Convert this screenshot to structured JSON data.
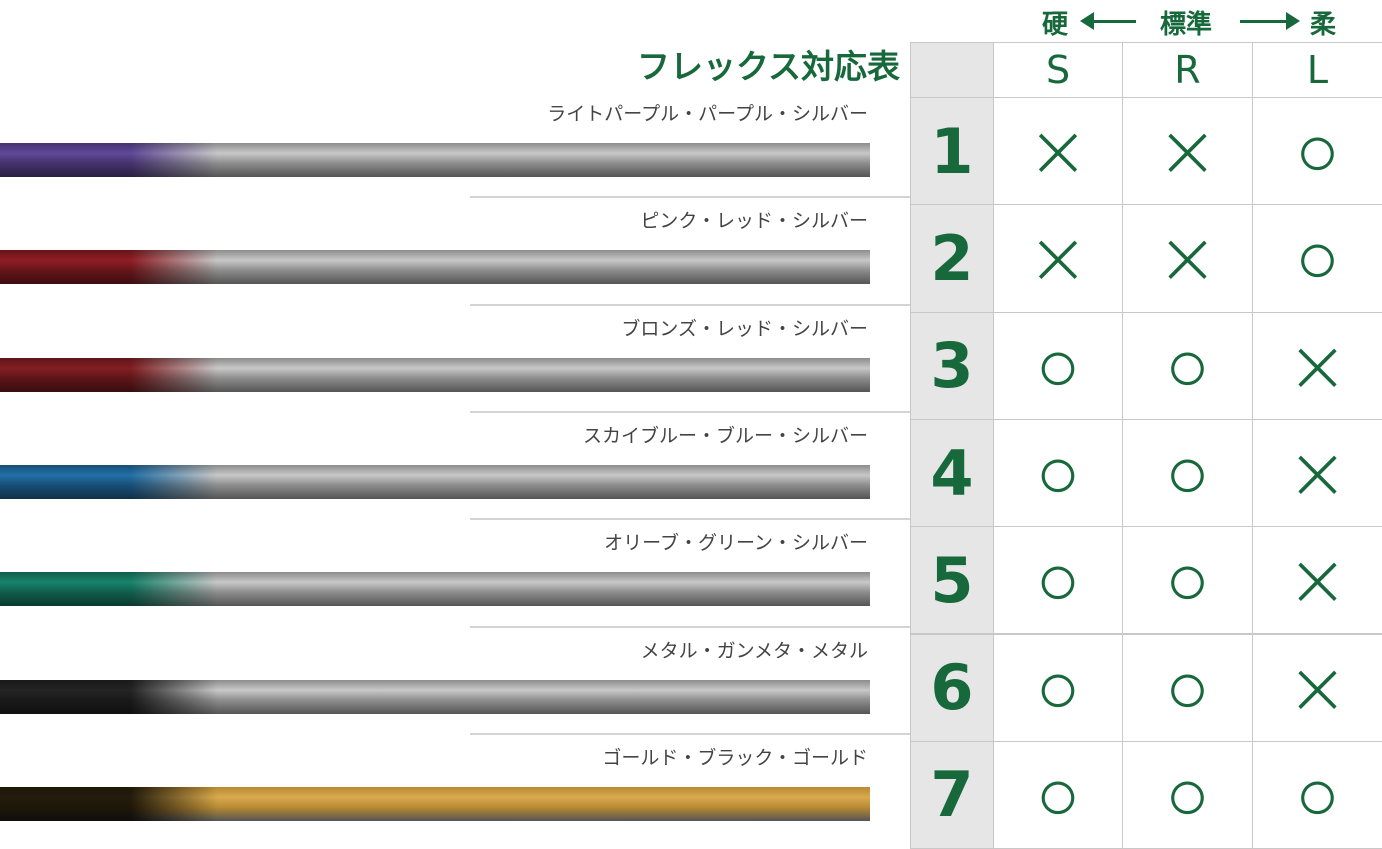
{
  "header": {
    "hard": "硬",
    "standard": "標準",
    "soft": "柔"
  },
  "title": "フレックス対応表",
  "columns": [
    "S",
    "R",
    "L"
  ],
  "rows": [
    {
      "number": "1",
      "label": "ライトパープル・パープル・シルバー",
      "marks": [
        "×",
        "×",
        "○"
      ]
    },
    {
      "number": "2",
      "label": "ピンク・レッド・シルバー",
      "marks": [
        "×",
        "×",
        "○"
      ]
    },
    {
      "number": "3",
      "label": "ブロンズ・レッド・シルバー",
      "marks": [
        "○",
        "○",
        "×"
      ]
    },
    {
      "number": "4",
      "label": "スカイブルー・ブルー・シルバー",
      "marks": [
        "○",
        "○",
        "×"
      ]
    },
    {
      "number": "5",
      "label": "オリーブ・グリーン・シルバー",
      "marks": [
        "○",
        "○",
        "×"
      ]
    },
    {
      "number": "6",
      "label": "メタル・ガンメタ・メタル",
      "marks": [
        "○",
        "○",
        "×"
      ]
    },
    {
      "number": "7",
      "label": "ゴールド・ブラック・ゴールド",
      "marks": [
        "○",
        "○",
        "○"
      ]
    }
  ]
}
